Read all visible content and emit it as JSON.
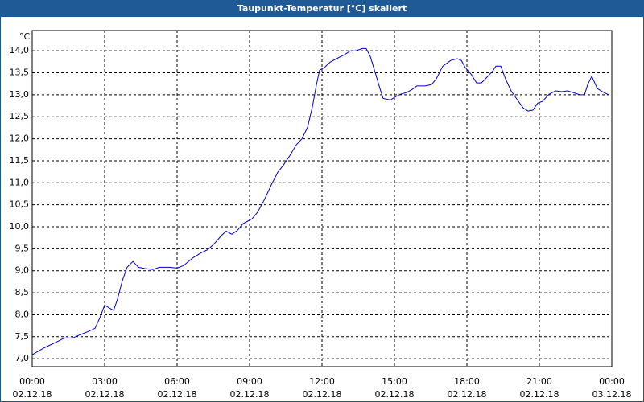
{
  "chart_data": {
    "type": "line",
    "title": "Taupunkt-Temperatur [°C] skaliert",
    "y_unit": "°C",
    "color": "#0000cc",
    "grid": true,
    "x": [
      0,
      0.5,
      1.0,
      1.33,
      1.67,
      2.0,
      2.33,
      2.6,
      2.8,
      3.0,
      3.2,
      3.37,
      3.53,
      3.73,
      3.93,
      4.17,
      4.4,
      4.67,
      5.0,
      5.27,
      5.67,
      6.0,
      6.27,
      6.67,
      7.0,
      7.27,
      7.53,
      7.83,
      8.03,
      8.27,
      8.5,
      8.73,
      9.1,
      9.33,
      9.6,
      9.9,
      10.17,
      10.4,
      10.67,
      10.93,
      11.17,
      11.4,
      11.6,
      11.77,
      11.9,
      12.1,
      12.33,
      12.67,
      12.93,
      13.17,
      13.4,
      13.67,
      13.83,
      14.0,
      14.2,
      14.4,
      14.53,
      14.83,
      15.0,
      15.23,
      15.5,
      15.73,
      15.93,
      16.27,
      16.53,
      16.73,
      17.0,
      17.33,
      17.6,
      17.77,
      17.93,
      18.17,
      18.4,
      18.6,
      18.83,
      19.07,
      19.2,
      19.4,
      19.6,
      19.83,
      20.07,
      20.33,
      20.53,
      20.73,
      20.93,
      21.13,
      21.4,
      21.67,
      21.93,
      22.17,
      22.4,
      22.67,
      22.87,
      23.0,
      23.17,
      23.4,
      23.67,
      23.87
    ],
    "values": [
      7.09,
      7.25,
      7.38,
      7.47,
      7.47,
      7.55,
      7.62,
      7.69,
      7.93,
      8.22,
      8.15,
      8.1,
      8.35,
      8.77,
      9.08,
      9.21,
      9.08,
      9.05,
      9.03,
      9.08,
      9.08,
      9.06,
      9.12,
      9.3,
      9.41,
      9.48,
      9.61,
      9.8,
      9.9,
      9.83,
      9.92,
      10.07,
      10.18,
      10.33,
      10.6,
      10.95,
      11.24,
      11.4,
      11.62,
      11.86,
      12.0,
      12.26,
      12.72,
      13.23,
      13.56,
      13.62,
      13.74,
      13.84,
      13.91,
      14.0,
      14.0,
      14.05,
      14.05,
      13.87,
      13.51,
      13.14,
      12.92,
      12.88,
      12.94,
      13.01,
      13.05,
      13.12,
      13.2,
      13.2,
      13.23,
      13.36,
      13.65,
      13.78,
      13.82,
      13.78,
      13.62,
      13.47,
      13.27,
      13.27,
      13.4,
      13.54,
      13.65,
      13.65,
      13.36,
      13.09,
      12.9,
      12.7,
      12.63,
      12.65,
      12.81,
      12.85,
      13.01,
      13.09,
      13.07,
      13.09,
      13.05,
      13.0,
      13.0,
      13.23,
      13.42,
      13.14,
      13.05,
      13.0
    ],
    "xlim": [
      0,
      24
    ],
    "ylim": [
      6.82,
      14.46
    ],
    "xticks": [
      {
        "value": 0,
        "label": "00:00"
      },
      {
        "value": 3,
        "label": "03:00"
      },
      {
        "value": 6,
        "label": "06:00"
      },
      {
        "value": 9,
        "label": "09:00"
      },
      {
        "value": 12,
        "label": "12:00"
      },
      {
        "value": 15,
        "label": "15:00"
      },
      {
        "value": 18,
        "label": "18:00"
      },
      {
        "value": 21,
        "label": "21:00"
      },
      {
        "value": 24,
        "label": "00:00"
      }
    ],
    "xtick_dates": [
      "02.12.18",
      "02.12.18",
      "02.12.18",
      "02.12.18",
      "02.12.18",
      "02.12.18",
      "02.12.18",
      "02.12.18",
      "03.12.18"
    ],
    "yticks": [
      {
        "value": 7,
        "label": "7,0"
      },
      {
        "value": 7.5,
        "label": "7,5"
      },
      {
        "value": 8,
        "label": "8,0"
      },
      {
        "value": 8.5,
        "label": "8,5"
      },
      {
        "value": 9,
        "label": "9,0"
      },
      {
        "value": 9.5,
        "label": "9,5"
      },
      {
        "value": 10,
        "label": "10,0"
      },
      {
        "value": 10.5,
        "label": "10,5"
      },
      {
        "value": 11,
        "label": "11,0"
      },
      {
        "value": 11.5,
        "label": "11,5"
      },
      {
        "value": 12,
        "label": "12,0"
      },
      {
        "value": 12.5,
        "label": "12,5"
      },
      {
        "value": 13,
        "label": "13,0"
      },
      {
        "value": 13.5,
        "label": "13,5"
      },
      {
        "value": 14,
        "label": "14,0"
      }
    ]
  }
}
